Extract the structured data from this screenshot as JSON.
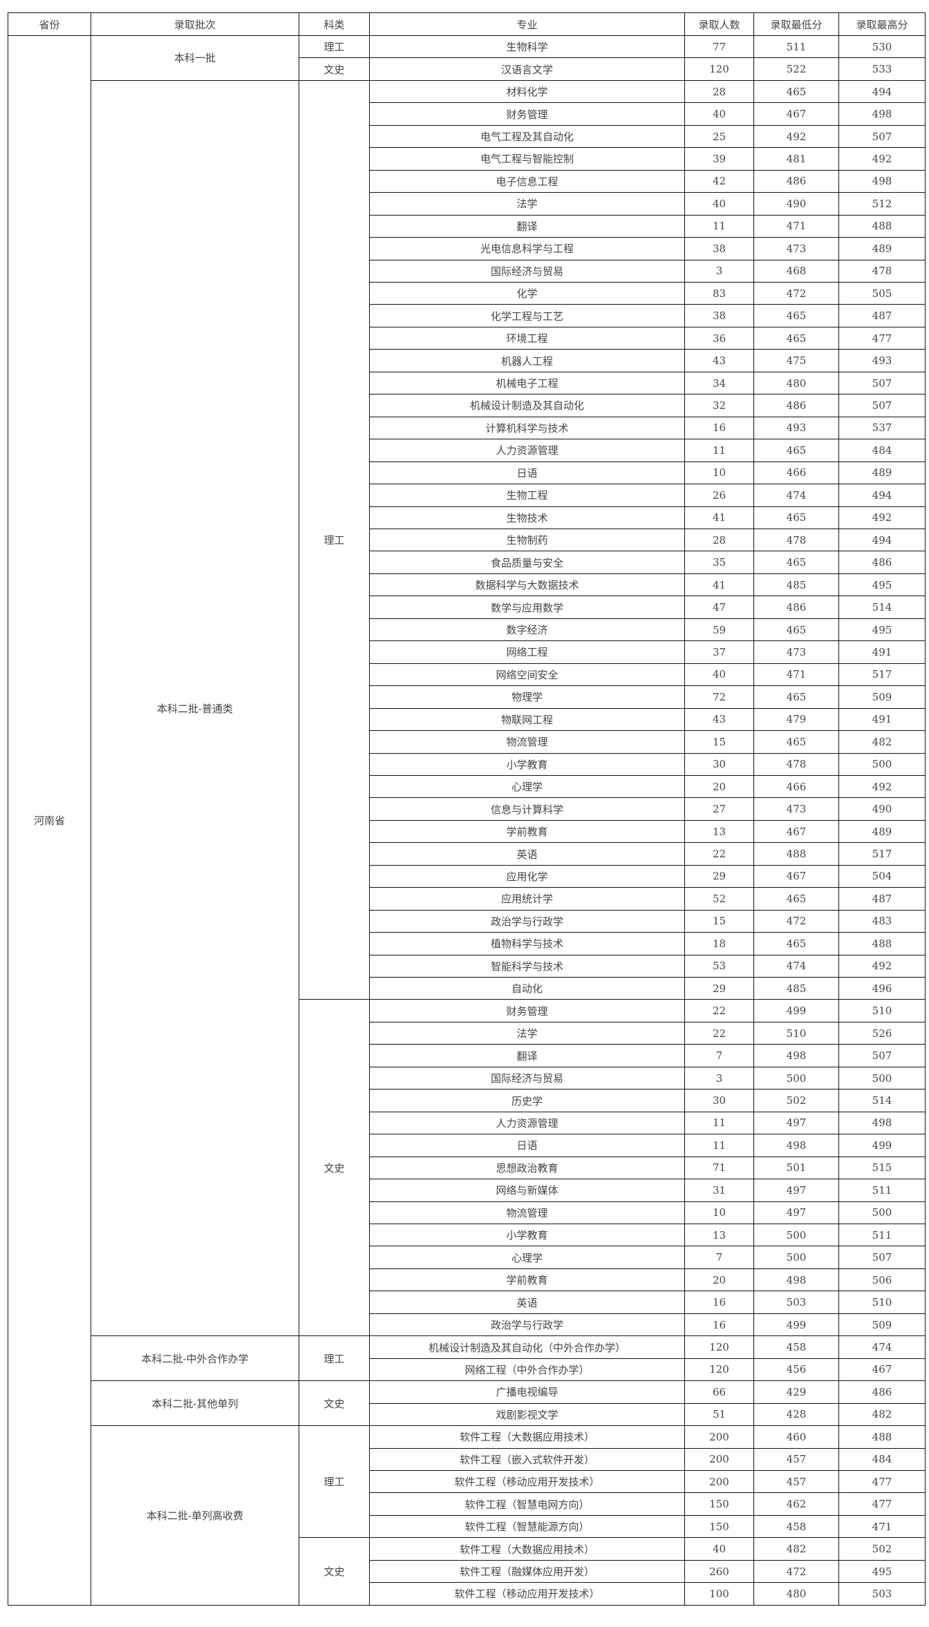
{
  "headers": [
    "省份",
    "录取批次",
    "科类",
    "专业",
    "录取人数",
    "录取最低分",
    "录取最高分"
  ],
  "province": "河南省",
  "groups": [
    {
      "batch": "本科一批",
      "subjects": [
        {
          "category": "理工",
          "rows": [
            [
              "生物科学",
              "77",
              "511",
              "530"
            ]
          ]
        },
        {
          "category": "文史",
          "rows": [
            [
              "汉语言文学",
              "120",
              "522",
              "533"
            ]
          ]
        }
      ]
    },
    {
      "batch": "本科二批-普通类",
      "subjects": [
        {
          "category": "理工",
          "rows": [
            [
              "材料化学",
              "28",
              "465",
              "494"
            ],
            [
              "财务管理",
              "40",
              "467",
              "498"
            ],
            [
              "电气工程及其自动化",
              "25",
              "492",
              "507"
            ],
            [
              "电气工程与智能控制",
              "39",
              "481",
              "492"
            ],
            [
              "电子信息工程",
              "42",
              "486",
              "498"
            ],
            [
              "法学",
              "40",
              "490",
              "512"
            ],
            [
              "翻译",
              "11",
              "471",
              "488"
            ],
            [
              "光电信息科学与工程",
              "38",
              "473",
              "489"
            ],
            [
              "国际经济与贸易",
              "3",
              "468",
              "478"
            ],
            [
              "化学",
              "83",
              "472",
              "505"
            ],
            [
              "化学工程与工艺",
              "38",
              "465",
              "487"
            ],
            [
              "环境工程",
              "36",
              "465",
              "477"
            ],
            [
              "机器人工程",
              "43",
              "475",
              "493"
            ],
            [
              "机械电子工程",
              "34",
              "480",
              "507"
            ],
            [
              "机械设计制造及其自动化",
              "32",
              "486",
              "507"
            ],
            [
              "计算机科学与技术",
              "16",
              "493",
              "537"
            ],
            [
              "人力资源管理",
              "11",
              "465",
              "484"
            ],
            [
              "日语",
              "10",
              "466",
              "489"
            ],
            [
              "生物工程",
              "26",
              "474",
              "494"
            ],
            [
              "生物技术",
              "41",
              "465",
              "492"
            ],
            [
              "生物制药",
              "28",
              "478",
              "494"
            ],
            [
              "食品质量与安全",
              "35",
              "465",
              "486"
            ],
            [
              "数据科学与大数据技术",
              "41",
              "485",
              "495"
            ],
            [
              "数学与应用数学",
              "47",
              "486",
              "514"
            ],
            [
              "数字经济",
              "59",
              "465",
              "495"
            ],
            [
              "网络工程",
              "37",
              "473",
              "491"
            ],
            [
              "网络空间安全",
              "40",
              "471",
              "517"
            ],
            [
              "物理学",
              "72",
              "465",
              "509"
            ],
            [
              "物联网工程",
              "43",
              "479",
              "491"
            ],
            [
              "物流管理",
              "15",
              "465",
              "482"
            ],
            [
              "小学教育",
              "30",
              "478",
              "500"
            ],
            [
              "心理学",
              "20",
              "466",
              "492"
            ],
            [
              "信息与计算科学",
              "27",
              "473",
              "490"
            ],
            [
              "学前教育",
              "13",
              "467",
              "489"
            ],
            [
              "英语",
              "22",
              "488",
              "517"
            ],
            [
              "应用化学",
              "29",
              "467",
              "504"
            ],
            [
              "应用统计学",
              "52",
              "465",
              "487"
            ],
            [
              "政治学与行政学",
              "15",
              "472",
              "483"
            ],
            [
              "植物科学与技术",
              "18",
              "465",
              "488"
            ],
            [
              "智能科学与技术",
              "53",
              "474",
              "492"
            ],
            [
              "自动化",
              "29",
              "485",
              "496"
            ]
          ]
        },
        {
          "category": "文史",
          "rows": [
            [
              "财务管理",
              "22",
              "499",
              "510"
            ],
            [
              "法学",
              "22",
              "510",
              "526"
            ],
            [
              "翻译",
              "7",
              "498",
              "507"
            ],
            [
              "国际经济与贸易",
              "3",
              "500",
              "500"
            ],
            [
              "历史学",
              "30",
              "502",
              "514"
            ],
            [
              "人力资源管理",
              "11",
              "497",
              "498"
            ],
            [
              "日语",
              "11",
              "498",
              "499"
            ],
            [
              "思想政治教育",
              "71",
              "501",
              "515"
            ],
            [
              "网络与新媒体",
              "31",
              "497",
              "511"
            ],
            [
              "物流管理",
              "10",
              "497",
              "500"
            ],
            [
              "小学教育",
              "13",
              "500",
              "511"
            ],
            [
              "心理学",
              "7",
              "500",
              "507"
            ],
            [
              "学前教育",
              "20",
              "498",
              "506"
            ],
            [
              "英语",
              "16",
              "503",
              "510"
            ],
            [
              "政治学与行政学",
              "16",
              "499",
              "509"
            ]
          ]
        }
      ]
    },
    {
      "batch": "本科二批-中外合作办学",
      "subjects": [
        {
          "category": "理工",
          "rows": [
            [
              "机械设计制造及其自动化（中外合作办学）",
              "120",
              "458",
              "474"
            ],
            [
              "网络工程（中外合作办学）",
              "120",
              "456",
              "467"
            ]
          ]
        }
      ]
    },
    {
      "batch": "本科二批-其他单列",
      "subjects": [
        {
          "category": "文史",
          "rows": [
            [
              "广播电视编导",
              "66",
              "429",
              "486"
            ],
            [
              "戏剧影视文学",
              "51",
              "428",
              "482"
            ]
          ]
        }
      ]
    },
    {
      "batch": "本科二批-单列高收费",
      "subjects": [
        {
          "category": "理工",
          "rows": [
            [
              "软件工程（大数据应用技术）",
              "200",
              "460",
              "488"
            ],
            [
              "软件工程（嵌入式软件开发）",
              "200",
              "457",
              "484"
            ],
            [
              "软件工程（移动应用开发技术）",
              "200",
              "457",
              "477"
            ],
            [
              "软件工程（智慧电网方向）",
              "150",
              "462",
              "477"
            ],
            [
              "软件工程（智慧能源方向）",
              "150",
              "458",
              "471"
            ]
          ]
        },
        {
          "category": "文史",
          "rows": [
            [
              "软件工程（大数据应用技术）",
              "40",
              "482",
              "502"
            ],
            [
              "软件工程（融媒体应用开发）",
              "260",
              "472",
              "495"
            ],
            [
              "软件工程（移动应用开发技术）",
              "100",
              "480",
              "503"
            ]
          ]
        }
      ]
    }
  ]
}
